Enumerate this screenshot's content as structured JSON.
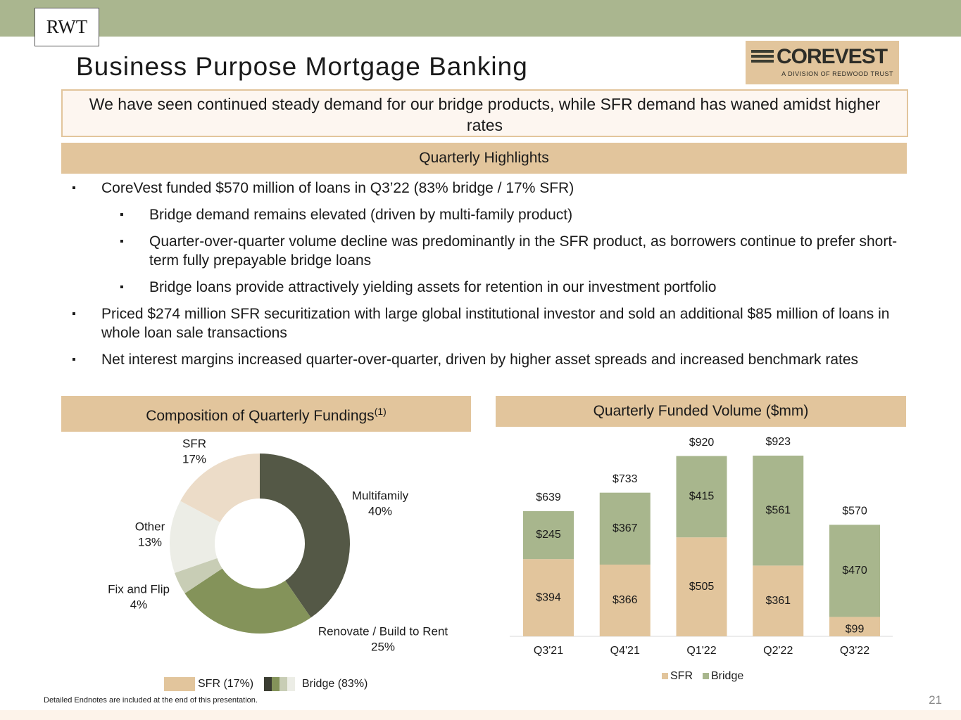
{
  "header": {
    "logo": "RWT",
    "title": "Business Purpose Mortgage Banking",
    "brand": "COREVEST",
    "brand_tagline": "A DIVISION OF REDWOOD TRUST"
  },
  "summary": "We have seen continued steady demand for our bridge products, while SFR demand has waned amidst higher rates",
  "highlights": {
    "title": "Quarterly Highlights",
    "items": [
      {
        "level": 1,
        "text": "CoreVest funded $570 million of loans in Q3’22 (83% bridge / 17% SFR)"
      },
      {
        "level": 2,
        "text": "Bridge demand remains elevated (driven by multi-family product)"
      },
      {
        "level": 2,
        "text": "Quarter-over-quarter volume decline was predominantly in the SFR product, as borrowers continue to prefer short-term fully prepayable bridge loans"
      },
      {
        "level": 2,
        "text": "Bridge loans provide attractively yielding assets for retention in our investment portfolio"
      },
      {
        "level": 1,
        "text": "Priced $274 million SFR securitization with large global institutional investor and sold an additional $85 million of loans in whole loan sale transactions"
      },
      {
        "level": 1,
        "text": "Net interest margins increased quarter-over-quarter, driven by higher asset spreads and increased benchmark rates"
      }
    ]
  },
  "chart_data": [
    {
      "type": "pie",
      "title": "Composition of Quarterly Fundings",
      "title_note": "(1)",
      "categories": [
        "Multifamily",
        "Renovate / Build to Rent",
        "Fix and Flip",
        "Other",
        "SFR"
      ],
      "values": [
        40,
        25,
        4,
        13,
        17
      ],
      "value_labels": [
        "40%",
        "25%",
        "4%",
        "13%",
        "17%"
      ],
      "colors": [
        "#545846",
        "#84935a",
        "#c8cdb5",
        "#ecede6",
        "#ecdcc8"
      ],
      "legend": [
        {
          "label": "SFR (17%)",
          "colors": [
            "#e2c59c"
          ]
        },
        {
          "label": "Bridge (83%)",
          "colors": [
            "#3b3d32",
            "#84935a",
            "#c8cdb5",
            "#ecede6"
          ]
        }
      ]
    },
    {
      "type": "stacked-bar",
      "title": "Quarterly Funded Volume ($mm)",
      "categories": [
        "Q3'21",
        "Q4'21",
        "Q1'22",
        "Q2'22",
        "Q3'22"
      ],
      "series": [
        {
          "name": "SFR",
          "color": "#e2c59c",
          "values": [
            394,
            366,
            505,
            361,
            99
          ],
          "value_labels": [
            "$394",
            "$366",
            "$505",
            "$361",
            "$99"
          ]
        },
        {
          "name": "Bridge",
          "color": "#a8b68d",
          "values": [
            245,
            367,
            415,
            561,
            470
          ],
          "value_labels": [
            "$245",
            "$367",
            "$415",
            "$561",
            "$470"
          ]
        }
      ],
      "totals": [
        639,
        733,
        920,
        923,
        570
      ],
      "total_labels": [
        "$639",
        "$733",
        "$920",
        "$923",
        "$570"
      ]
    }
  ],
  "footer": {
    "note": "Detailed Endnotes are included at the end of this presentation.",
    "page_number": 21
  }
}
